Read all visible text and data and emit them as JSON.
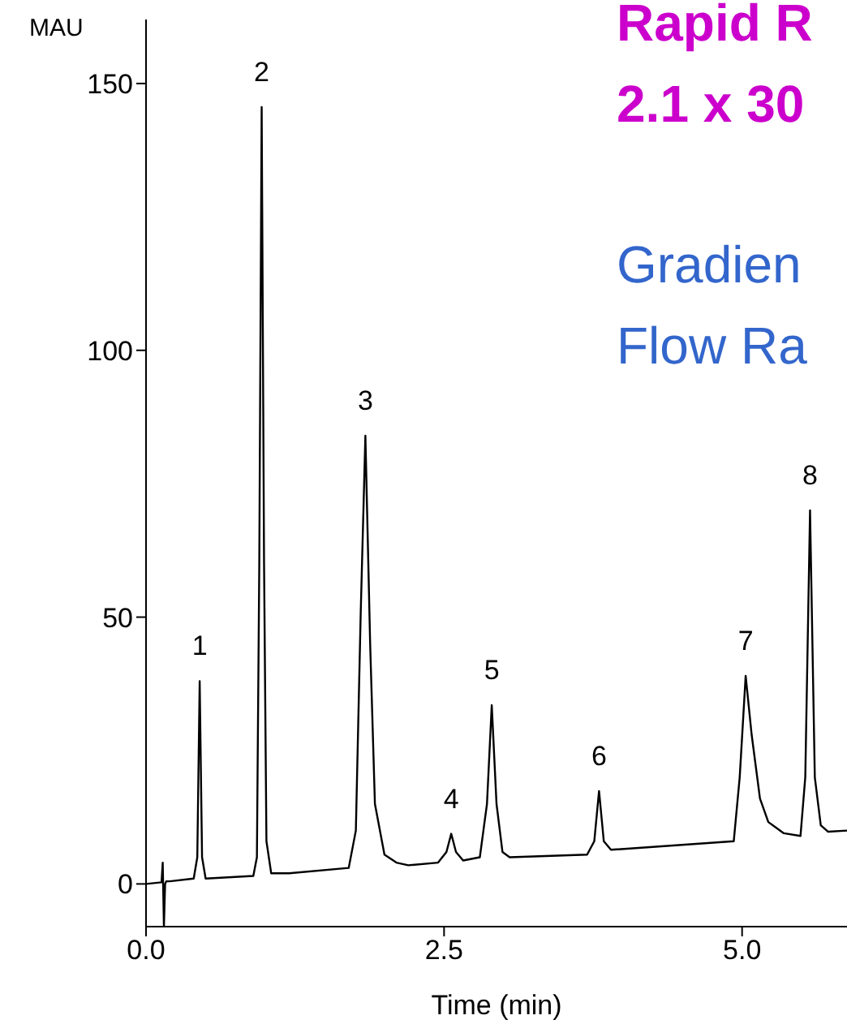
{
  "chart_data": {
    "type": "line",
    "xlabel": "Time (min)",
    "ylabel": "MAU",
    "annotations": [
      "Rapid R",
      "2.1 x 30",
      "Gradien",
      "Flow Ra",
      {
        "text": "1",
        "x": 0.45,
        "y": 38
      },
      {
        "text": "2",
        "x": 0.97,
        "y": 145.6
      },
      {
        "text": "3",
        "x": 1.84,
        "y": 84
      },
      {
        "text": "4",
        "x": 2.56,
        "y": 9.4
      },
      {
        "text": "5",
        "x": 2.9,
        "y": 33.5
      },
      {
        "text": "6",
        "x": 3.8,
        "y": 17.4
      },
      {
        "text": "7",
        "x": 5.03,
        "y": 39
      },
      {
        "text": "8",
        "x": 5.57,
        "y": 70
      }
    ],
    "series": [
      {
        "color": "#000000",
        "x": [
          0,
          0.13,
          0.14,
          0.15,
          0.16,
          0.17,
          0.2,
          0.4,
          0.43,
          0.45,
          0.47,
          0.5,
          0.9,
          0.93,
          0.95,
          0.97,
          0.99,
          1.01,
          1.05,
          1.2,
          1.7,
          1.76,
          1.8,
          1.84,
          1.88,
          1.92,
          2.0,
          2.1,
          2.2,
          2.45,
          2.52,
          2.56,
          2.6,
          2.66,
          2.8,
          2.86,
          2.9,
          2.94,
          2.99,
          3.05,
          3.7,
          3.76,
          3.8,
          3.84,
          3.9,
          4.93,
          4.98,
          5.03,
          5.08,
          5.15,
          5.22,
          5.35,
          5.49,
          5.53,
          5.57,
          5.61,
          5.66,
          5.72,
          5.88
        ],
        "values": [
          0,
          0.3,
          4,
          -8,
          0,
          0.5,
          0.5,
          1,
          5,
          38,
          5,
          1,
          1.5,
          5,
          60,
          145.6,
          60,
          8,
          2,
          2,
          3,
          10,
          50,
          84,
          45,
          15,
          5.5,
          4,
          3.5,
          4,
          6,
          9.4,
          6,
          4.4,
          5,
          15,
          33.5,
          15,
          6,
          5,
          5.5,
          8,
          17.4,
          8,
          6.4,
          8,
          20,
          39,
          28,
          16,
          11.6,
          9.5,
          9,
          20,
          70,
          20,
          11,
          9.8,
          10
        ]
      }
    ],
    "xlim": [
      0,
      5.88
    ],
    "xticks": [
      {
        "value": 0,
        "label": "0.0"
      },
      2.5,
      {
        "value": 5,
        "label": "5.0"
      }
    ],
    "ylim": [
      -8,
      162
    ],
    "yticks": [
      0,
      50,
      100,
      150
    ],
    "grid": false,
    "legend": false,
    "marker": "none",
    "line_style": "solid"
  }
}
